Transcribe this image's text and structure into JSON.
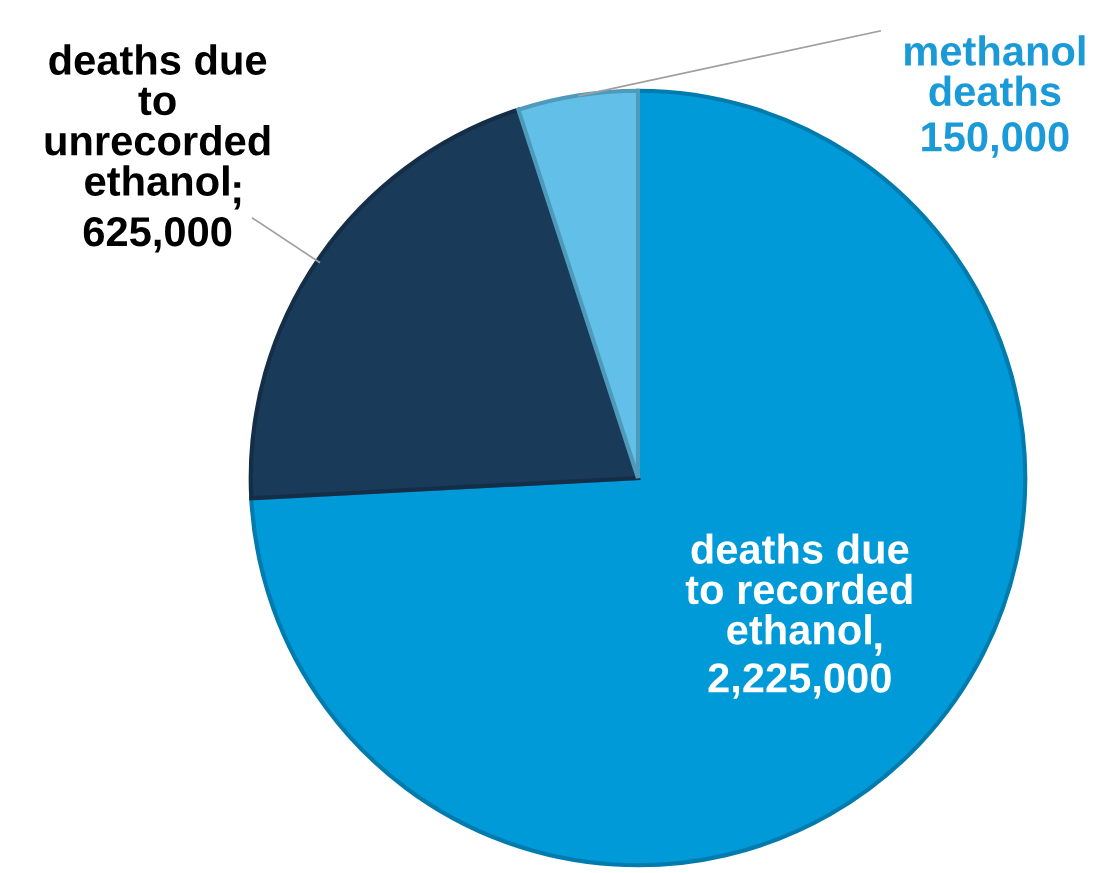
{
  "chart_data": {
    "type": "pie",
    "categories": [
      "deaths due\nto recorded\nethanol",
      "deaths due\nto\nunrecorded\nethanol",
      "methanol\ndeaths"
    ],
    "values": [
      2225000,
      625000,
      150000
    ],
    "value_labels": [
      "2,225,000",
      "625,000",
      "150,000"
    ],
    "colors": [
      "#009ad9",
      "#1a3a5a",
      "#62c0e8"
    ],
    "annotations": [
      ",",
      ";"
    ],
    "legend": false
  }
}
